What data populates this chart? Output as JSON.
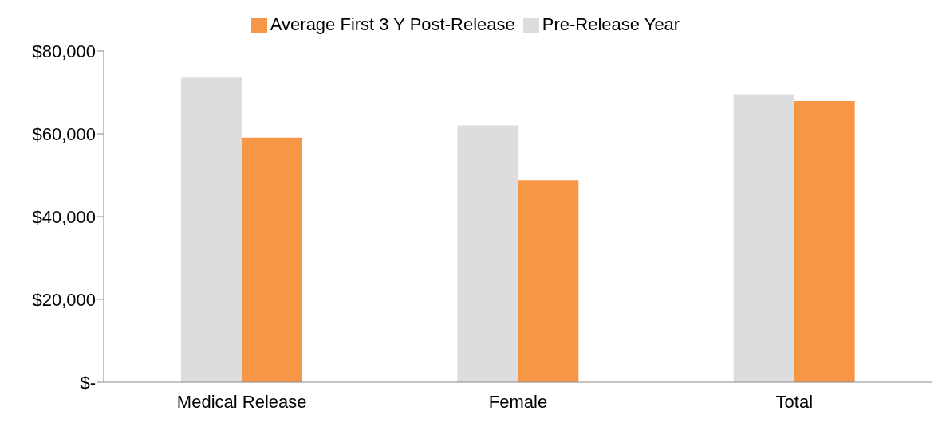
{
  "chart_data": {
    "type": "bar",
    "categories": [
      "Medical Release",
      "Female",
      "Total"
    ],
    "series": [
      {
        "name": "Pre-Release Year",
        "color": "#dcdddf",
        "values": [
          73600,
          62000,
          69500
        ]
      },
      {
        "name": "Average First 3 Y Post-Release",
        "color": "#f79646",
        "values": [
          59100,
          48800,
          67900
        ]
      }
    ],
    "ylim": [
      0,
      80000
    ],
    "yticks": [
      {
        "value": 0,
        "label": "$-"
      },
      {
        "value": 20000,
        "label": "$20,000"
      },
      {
        "value": 40000,
        "label": "$40,000"
      },
      {
        "value": 60000,
        "label": "$60,000"
      },
      {
        "value": 80000,
        "label": "$80,000"
      }
    ],
    "grid": false,
    "legend": "top"
  }
}
